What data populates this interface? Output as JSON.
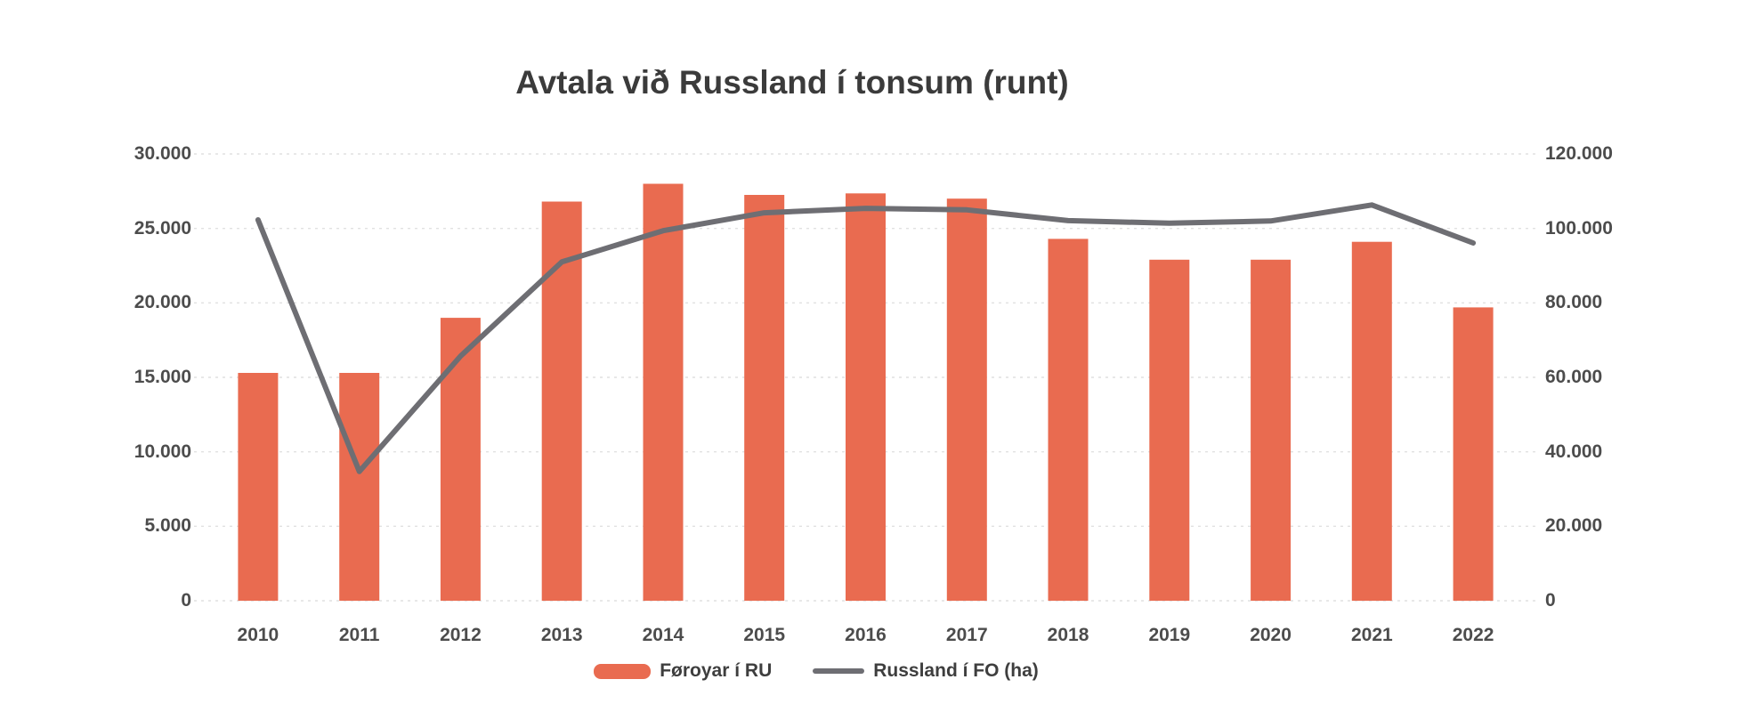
{
  "title": "Avtala við Russland í tonsum (runt)",
  "chart_data": {
    "type": "bar",
    "subtype": "combo-bar-line",
    "title": "Avtala við Russland í tonsum (runt)",
    "categories": [
      "2010",
      "2011",
      "2012",
      "2013",
      "2014",
      "2015",
      "2016",
      "2017",
      "2018",
      "2019",
      "2020",
      "2021",
      "2022"
    ],
    "series": [
      {
        "name": "Føroyar í RU",
        "type": "bar",
        "axis": "left",
        "color": "#e96b50",
        "values": [
          15300,
          15300,
          19000,
          26800,
          28000,
          27250,
          27350,
          27000,
          24300,
          22900,
          22900,
          24100,
          19700
        ]
      },
      {
        "name": "Russland í FO (ha)",
        "type": "line",
        "axis": "right",
        "color": "#6e6e73",
        "values": [
          102300,
          34700,
          65700,
          91000,
          99400,
          104200,
          105400,
          105000,
          102100,
          101400,
          102000,
          106300,
          96100
        ]
      }
    ],
    "left_axis": {
      "min": 0,
      "max": 30000,
      "step": 5000,
      "tick_labels": [
        "0",
        "5.000",
        "10.000",
        "15.000",
        "20.000",
        "25.000",
        "30.000"
      ]
    },
    "right_axis": {
      "min": 0,
      "max": 120000,
      "step": 20000,
      "tick_labels": [
        "0",
        "20.000",
        "40.000",
        "60.000",
        "80.000",
        "100.000",
        "120.000"
      ]
    },
    "grid": true,
    "legend_position": "bottom",
    "xlabel": "",
    "ylabel": ""
  },
  "colors": {
    "bar": "#e96b50",
    "line": "#6e6e73",
    "grid": "#dedede",
    "tick_text": "#4c4c4c",
    "title_text": "#3b3b3b",
    "background": "#ffffff"
  }
}
